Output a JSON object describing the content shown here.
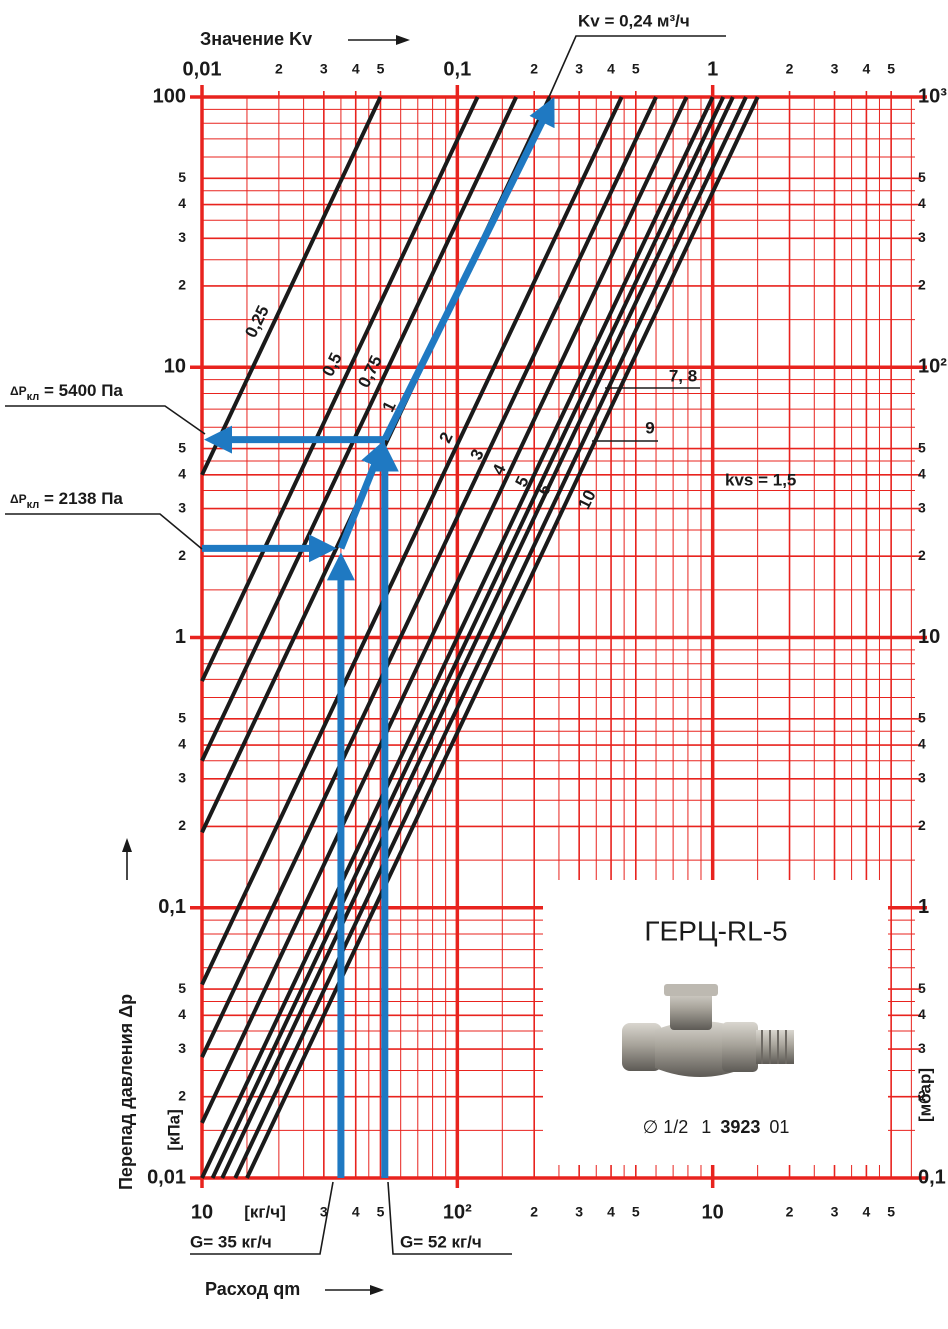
{
  "chart_data": {
    "type": "line",
    "x_label": "Расход qm",
    "x_unit": "[кг/ч]",
    "x2_label": "Значение Kv",
    "y_label": "Перепад давления Δp",
    "y_unit": "[кПа]",
    "y2_unit": "[мбар]",
    "log_scale": true,
    "grid": true,
    "grid_color": "#e8231e",
    "xlim": [
      10,
      6200
    ],
    "x2lim": [
      0.01,
      6.2
    ],
    "ylim": [
      0.01,
      100
    ],
    "y2lim": [
      0.1,
      1000
    ],
    "xticks": [
      10,
      {
        "value": 30,
        "label": "3"
      },
      {
        "value": 40,
        "label": "4"
      },
      {
        "value": 50,
        "label": "5"
      },
      {
        "value": 100,
        "label": "10²"
      },
      {
        "value": 200,
        "label": "2"
      },
      {
        "value": 300,
        "label": "3"
      },
      {
        "value": 400,
        "label": "4"
      },
      {
        "value": 500,
        "label": "5"
      },
      {
        "value": 1000,
        "label": "10"
      },
      {
        "value": 2000,
        "label": "2"
      },
      {
        "value": 3000,
        "label": "3"
      },
      {
        "value": 4000,
        "label": "4"
      },
      {
        "value": 5000,
        "label": "5"
      }
    ],
    "x2ticks": [
      {
        "value": 0.01,
        "label": "0,01"
      },
      {
        "value": 0.02,
        "label": "2"
      },
      {
        "value": 0.03,
        "label": "3"
      },
      {
        "value": 0.04,
        "label": "4"
      },
      {
        "value": 0.05,
        "label": "5"
      },
      {
        "value": 0.1,
        "label": "0,1"
      },
      {
        "value": 0.2,
        "label": "2"
      },
      {
        "value": 0.3,
        "label": "3"
      },
      {
        "value": 0.4,
        "label": "4"
      },
      {
        "value": 0.5,
        "label": "5"
      },
      1,
      2,
      3,
      4,
      5
    ],
    "yticks": [
      100,
      {
        "value": 50,
        "label": "5"
      },
      {
        "value": 40,
        "label": "4"
      },
      {
        "value": 30,
        "label": "3"
      },
      {
        "value": 20,
        "label": "2"
      },
      10,
      5,
      4,
      3,
      2,
      1,
      {
        "value": 0.5,
        "label": "5"
      },
      {
        "value": 0.4,
        "label": "4"
      },
      {
        "value": 0.3,
        "label": "3"
      },
      {
        "value": 0.2,
        "label": "2"
      },
      {
        "value": 0.1,
        "label": "0,1"
      },
      {
        "value": 0.05,
        "label": "5"
      },
      {
        "value": 0.04,
        "label": "4"
      },
      {
        "value": 0.03,
        "label": "3"
      },
      {
        "value": 0.02,
        "label": "2"
      },
      {
        "value": 0.01,
        "label": "0,01"
      }
    ],
    "y2ticks": [
      {
        "value": 1000,
        "label": "10³"
      },
      {
        "value": 500,
        "label": "5"
      },
      {
        "value": 400,
        "label": "4"
      },
      {
        "value": 300,
        "label": "3"
      },
      {
        "value": 200,
        "label": "2"
      },
      {
        "value": 100,
        "label": "10²"
      },
      {
        "value": 50,
        "label": "5"
      },
      {
        "value": 40,
        "label": "4"
      },
      {
        "value": 30,
        "label": "3"
      },
      {
        "value": 20,
        "label": "2"
      },
      10,
      5,
      4,
      3,
      2,
      1,
      {
        "value": 0.5,
        "label": "5"
      },
      {
        "value": 0.4,
        "label": "4"
      },
      {
        "value": 0.3,
        "label": "3"
      },
      {
        "value": 0.2,
        "label": "2"
      },
      {
        "value": 0.1,
        "label": "0,1"
      }
    ],
    "xminor": [
      15,
      20,
      25,
      35,
      45,
      60,
      70,
      80,
      90,
      150,
      250,
      350,
      450,
      600,
      700,
      800,
      900,
      1500,
      2500,
      3500,
      4500,
      6000
    ],
    "yminor": [
      0.015,
      0.025,
      0.035,
      0.045,
      0.06,
      0.07,
      0.08,
      0.09,
      0.15,
      0.25,
      0.35,
      0.45,
      0.6,
      0.7,
      0.8,
      0.9,
      1.5,
      2.5,
      3.5,
      4.5,
      6,
      7,
      8,
      9,
      15,
      25,
      35,
      45,
      60,
      70,
      80,
      90
    ],
    "series": [
      {
        "name": "0,25",
        "color": "#1a1a1a",
        "x": [
          10,
          50
        ],
        "values": [
          4,
          100
        ]
      },
      {
        "name": "0,5",
        "color": "#1a1a1a",
        "x": [
          10,
          120
        ],
        "values": [
          0.69,
          100
        ]
      },
      {
        "name": "0,75",
        "color": "#1a1a1a",
        "x": [
          10,
          170
        ],
        "values": [
          0.35,
          100
        ]
      },
      {
        "name": "1",
        "color": "#1a1a1a",
        "x": [
          10,
          230
        ],
        "values": [
          0.19,
          100
        ]
      },
      {
        "name": "2",
        "color": "#1a1a1a",
        "x": [
          10,
          440
        ],
        "values": [
          0.052,
          100
        ]
      },
      {
        "name": "3",
        "color": "#1a1a1a",
        "x": [
          10,
          600
        ],
        "values": [
          0.028,
          100
        ]
      },
      {
        "name": "4",
        "color": "#1a1a1a",
        "x": [
          10,
          790
        ],
        "values": [
          0.016,
          100
        ]
      },
      {
        "name": "5",
        "color": "#1a1a1a",
        "x": [
          10,
          1000
        ],
        "values": [
          0.01,
          100
        ]
      },
      {
        "name": "6",
        "color": "#1a1a1a",
        "x": [
          11,
          1100
        ],
        "values": [
          0.01,
          100
        ]
      },
      {
        "name": "7, 8",
        "color": "#1a1a1a",
        "x": [
          12,
          1200
        ],
        "values": [
          0.01,
          100
        ]
      },
      {
        "name": "9",
        "color": "#1a1a1a",
        "x": [
          13.5,
          1350
        ],
        "values": [
          0.01,
          100
        ]
      },
      {
        "name": "10",
        "color": "#1a1a1a",
        "x": [
          15,
          1500
        ],
        "values": [
          0.01,
          100
        ]
      }
    ],
    "kvs_label": "kvs = 1,5",
    "highlight_color": "#1f79c2",
    "operating_points": [
      {
        "G": 35,
        "dp": 2.138,
        "G_label": "G= 35 кг/ч",
        "dp_label": {
          "symbol": "ΔP",
          "sub": "кл",
          "text": " = 2138 Па"
        }
      },
      {
        "G": 52,
        "dp": 5.4,
        "G_label": "G= 52 кг/ч",
        "dp_label": {
          "symbol": "ΔP",
          "sub": "кл",
          "text": " = 5400 Па"
        }
      }
    ],
    "kv_point": {
      "value": 0.24,
      "label": "Kv = 0,24 м³/ч"
    },
    "inset": {
      "title": "ГЕРЦ-RL-5",
      "size": "∅ 1/2",
      "article_prefix": "1",
      "article_main": "3923",
      "article_suffix": "01"
    }
  }
}
